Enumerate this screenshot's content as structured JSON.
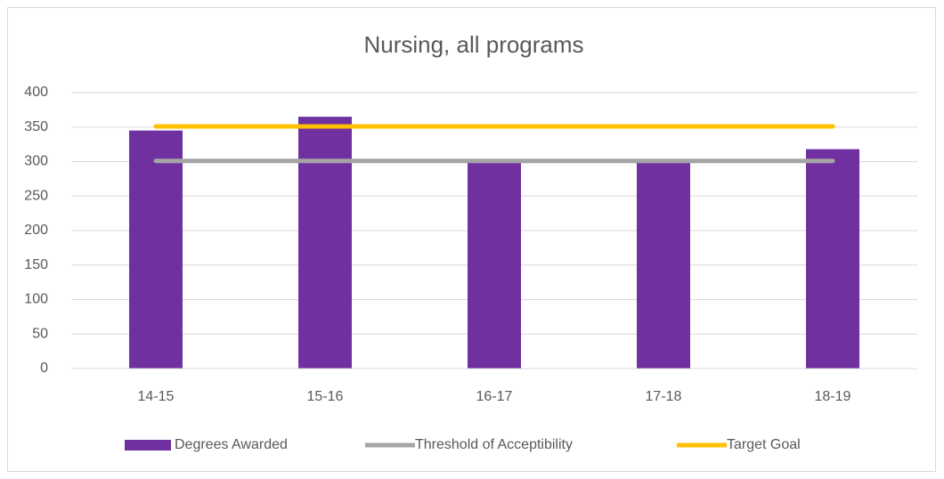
{
  "chart_data": {
    "type": "bar",
    "title": "Nursing, all programs",
    "categories": [
      "14-15",
      "15-16",
      "16-17",
      "17-18",
      "18-19"
    ],
    "series": [
      {
        "name": "Degrees Awarded",
        "type": "bar",
        "color": "#7030a0",
        "values": [
          345,
          365,
          299,
          299,
          318
        ]
      },
      {
        "name": "Threshold of Acceptibility",
        "type": "line",
        "color": "#a5a5a5",
        "values": [
          301,
          301,
          301,
          301,
          301
        ]
      },
      {
        "name": "Target Goal",
        "type": "line",
        "color": "#ffc000",
        "values": [
          351,
          351,
          351,
          351,
          351
        ]
      }
    ],
    "ylim": [
      0,
      400
    ],
    "yticks": [
      0,
      50,
      100,
      150,
      200,
      250,
      300,
      350,
      400
    ],
    "grid": true,
    "legend": "bottom"
  }
}
